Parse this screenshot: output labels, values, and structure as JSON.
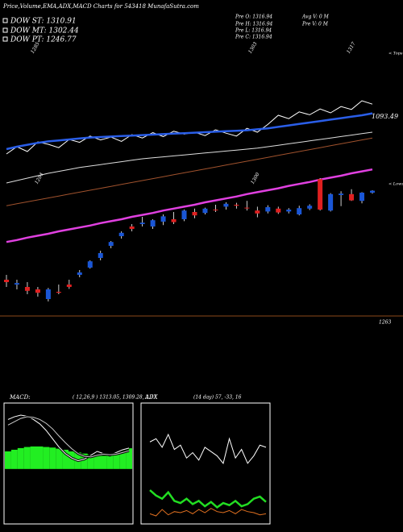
{
  "header": {
    "title": "Price,Volume,EMA,ADX,MACD Charts for 543418  MunafaSutra.com",
    "dow": [
      "DOW ST: 1310.91",
      "DOW MT: 1302.44",
      "DOW PT: 1246.77"
    ],
    "pre": [
      "Pre  O: 1316.94",
      "Pre  H: 1316.94",
      "Pre  L: 1316.94",
      "Pre  C: 1316.94"
    ],
    "volume": [
      "Avg V: 0  M",
      "Pre  V: 0  M"
    ]
  },
  "chart_data": [
    {
      "type": "candlestick",
      "ylim": [
        1255,
        1325
      ],
      "up_color": "#1a56d6",
      "down_color": "#e02020",
      "categories": [
        null,
        null,
        null,
        null,
        null,
        null,
        null,
        null,
        null,
        null,
        null,
        null,
        null,
        null,
        null,
        null,
        null,
        null,
        null,
        null,
        null,
        null,
        null,
        null,
        null,
        null,
        null,
        null,
        null,
        null,
        null,
        null,
        null,
        null,
        null,
        null
      ],
      "open": [
        1270.5,
        1269.5,
        1269,
        1268.5,
        1266.5,
        1268,
        1269.5,
        1271.5,
        1273,
        1275,
        1277.5,
        1279.5,
        1281.5,
        1282,
        1281.5,
        1282.5,
        1283,
        1283,
        1284.5,
        1284.3,
        1285,
        1285.6,
        1286,
        1285.4,
        1284.8,
        1284.6,
        1285.2,
        1284.6,
        1284,
        1285.2,
        1291.3,
        1284.8,
        1288,
        1288.2,
        1286.8,
        1288.5
      ],
      "high": [
        1271.5,
        1270.5,
        1270,
        1269,
        1268.8,
        1269.5,
        1270.5,
        1272.5,
        1274.5,
        1276.5,
        1278.5,
        1280.5,
        1282,
        1283.5,
        1283,
        1284,
        1284.5,
        1285,
        1285.2,
        1285.4,
        1286,
        1286.5,
        1286.4,
        1286.8,
        1285.6,
        1285.9,
        1285.6,
        1285.3,
        1285.8,
        1286.1,
        1291.5,
        1288.4,
        1288.8,
        1289.2,
        1288.6,
        1289
      ],
      "low": [
        1269,
        1268.5,
        1267.5,
        1267,
        1266,
        1267.5,
        1268.6,
        1271,
        1272.8,
        1274.5,
        1277,
        1279,
        1280.5,
        1281.5,
        1281,
        1281.8,
        1282,
        1282.6,
        1283.2,
        1284,
        1284.5,
        1285,
        1285.2,
        1284.8,
        1283.4,
        1284.2,
        1284.1,
        1284.2,
        1283.8,
        1284.9,
        1284.8,
        1284.6,
        1285.7,
        1286.8,
        1286.3,
        1288.3
      ],
      "close": [
        1270,
        1269.8,
        1268.2,
        1267.8,
        1268.5,
        1267.8,
        1269,
        1272,
        1274.3,
        1276,
        1278.3,
        1280.2,
        1281,
        1282.3,
        1282.8,
        1283.6,
        1282.4,
        1284.8,
        1283.8,
        1285.2,
        1284.9,
        1286.2,
        1285.8,
        1285.3,
        1284.2,
        1285.5,
        1284.4,
        1285,
        1285.3,
        1285.8,
        1285,
        1288.2,
        1288.3,
        1286.9,
        1288.5,
        1288.9
      ],
      "lines": [
        {
          "color": "#ffffff",
          "values": [
            1296.5,
            1298,
            1297,
            1299,
            1298.5,
            1297.8,
            1299.5,
            1298.9,
            1300.2,
            1299.4,
            1300,
            1299.1,
            1300.5,
            1299.8,
            1300.9,
            1300.1,
            1301.2,
            1300.6,
            1301,
            1300.3,
            1301.5,
            1300.8,
            1300.2,
            1301.8,
            1301,
            1302.6,
            1304.5,
            1303.8,
            1305.2,
            1304.6,
            1305.8,
            1305,
            1306.3,
            1305.7,
            1307.5,
            1306.8
          ]
        },
        {
          "color": "#2a5ee8",
          "values": [
            1297.5,
            1298,
            1298.4,
            1298.8,
            1299.1,
            1299.3,
            1299.5,
            1299.7,
            1299.9,
            1300,
            1300.1,
            1300.2,
            1300.3,
            1300.4,
            1300.5,
            1300.6,
            1300.7,
            1300.8,
            1300.9,
            1301,
            1301.1,
            1301.2,
            1301.3,
            1301.4,
            1301.6,
            1301.8,
            1302.1,
            1302.4,
            1302.7,
            1303,
            1303.3,
            1303.6,
            1303.9,
            1304.2,
            1304.5,
            1304.9
          ]
        },
        {
          "color": "#dddddd",
          "values": [
            1290.5,
            1291,
            1291.5,
            1292,
            1292.5,
            1292.9,
            1293.3,
            1293.7,
            1294,
            1294.3,
            1294.6,
            1294.9,
            1295.2,
            1295.5,
            1295.7,
            1295.9,
            1296.1,
            1296.3,
            1296.5,
            1296.7,
            1296.9,
            1297.1,
            1297.3,
            1297.5,
            1297.7,
            1298,
            1298.3,
            1298.6,
            1298.9,
            1299.2,
            1299.5,
            1299.8,
            1300.1,
            1300.4,
            1300.7,
            1301
          ]
        },
        {
          "color": "#a0522d",
          "values": [
            1285.8,
            1286.2,
            1286.6,
            1287,
            1287.4,
            1287.8,
            1288.2,
            1288.6,
            1289,
            1289.4,
            1289.8,
            1290.2,
            1290.6,
            1291,
            1291.4,
            1291.8,
            1292.2,
            1292.6,
            1293,
            1293.4,
            1293.8,
            1294.2,
            1294.6,
            1295,
            1295.4,
            1295.8,
            1296.2,
            1296.6,
            1297,
            1297.4,
            1297.8,
            1298.2,
            1298.6,
            1299,
            1299.4,
            1299.8
          ]
        },
        {
          "color": "#e040e0",
          "values": [
            1278.3,
            1278.7,
            1279.2,
            1279.6,
            1280,
            1280.5,
            1280.9,
            1281.3,
            1281.7,
            1282.2,
            1282.6,
            1283,
            1283.5,
            1283.9,
            1284.3,
            1284.8,
            1285.2,
            1285.6,
            1286,
            1286.5,
            1286.9,
            1287.3,
            1287.7,
            1288.2,
            1288.6,
            1289,
            1289.4,
            1289.9,
            1290.3,
            1290.7,
            1291.2,
            1291.6,
            1292,
            1292.5,
            1292.9,
            1293.3
          ]
        }
      ],
      "tops": [
        1285,
        1303,
        1317
      ],
      "tops_label": "< Tops",
      "lows": [
        1284,
        1300
      ],
      "lows_label": "< Lows",
      "ema_label": 1093.49,
      "support": 1263,
      "support_color": "#8b4a1a"
    },
    {
      "type": "macd",
      "title": "MACD:",
      "subtitle": "( 12,26,9 ) 1313.05, 1309.28, 3.77",
      "ylim": [
        -10,
        12
      ],
      "histogram": [
        3.2,
        3.5,
        3.8,
        4,
        4.1,
        4.1,
        4,
        3.9,
        3.7,
        3.5,
        3.2,
        3,
        2.8,
        2.6,
        2.5,
        2.4,
        2.5,
        2.8,
        3.3,
        3.77
      ],
      "histogram_color": "#22ee22",
      "series": [
        {
          "color": "#ffffff",
          "values": [
            9,
            9.5,
            9.8,
            9.6,
            9,
            8.2,
            7,
            5.5,
            4,
            2.8,
            2,
            1.5,
            1.8,
            2.5,
            3.2,
            2.8,
            2.5,
            3,
            3.5,
            3.8
          ]
        },
        {
          "color": "#cccccc",
          "values": [
            8,
            8.6,
            9.2,
            9.5,
            9.4,
            9,
            8.3,
            7.3,
            6,
            4.8,
            3.7,
            2.8,
            2.3,
            2.2,
            2.5,
            2.7,
            2.6,
            2.7,
            3,
            3.3
          ]
        }
      ]
    },
    {
      "type": "adx",
      "title": "ADX",
      "subtitle": "(14 day) 57, -33, 16",
      "ylim": [
        0,
        100
      ],
      "series": [
        {
          "color": "#ffffff",
          "values": [
            75,
            78,
            70,
            82,
            68,
            72,
            60,
            65,
            58,
            70,
            66,
            62,
            55,
            78,
            60,
            68,
            55,
            62,
            72,
            70
          ]
        },
        {
          "color": "#22dd22",
          "values": [
            30,
            25,
            22,
            28,
            20,
            18,
            22,
            17,
            20,
            15,
            19,
            14,
            18,
            16,
            20,
            15,
            17,
            22,
            24,
            19
          ]
        },
        {
          "color": "#e07020",
          "values": [
            8,
            6,
            12,
            7,
            10,
            9,
            11,
            8,
            12,
            9,
            13,
            10,
            9,
            11,
            8,
            12,
            10,
            9,
            7,
            8
          ]
        }
      ]
    }
  ]
}
